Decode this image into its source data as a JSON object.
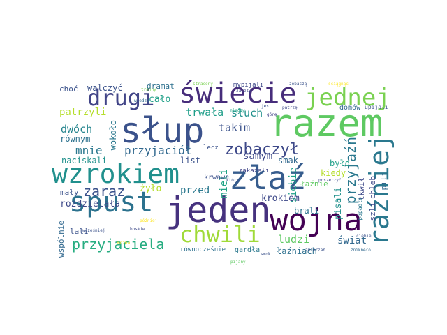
{
  "words": {
    "slup": "słup",
    "razem": "razem",
    "jeden": "jeden",
    "zlaz": "złaź",
    "wzrokiem": "wzrokiem",
    "wojna": "wojna",
    "swiecie": "świecie",
    "spust": "spust",
    "drugi": "drugi",
    "jednej": "jednej",
    "chwili": "chwili",
    "razniej": "raźniej",
    "zobaczyl": "zobaczył",
    "zaraz": "zaraz",
    "przyjaciela": "przyjaciela",
    "przyjaciol": "przyjaciół",
    "przyjazn": "przyjaźń",
    "patrzyli": "patrzyli",
    "trwala": "trwała",
    "sluch": "słuch",
    "mnie": "mnie",
    "dwoch": "dwóch",
    "takim": "takim",
    "samym": "samym",
    "calo": "cało",
    "dramat": "dramat",
    "walczyc": "walczyć",
    "choc": "choć",
    "rownym": "równym",
    "naciskali": "naciskali",
    "wokolo": "wokoło",
    "list": "list",
    "zylo": "żyło",
    "przed": "przed",
    "mieli": "mieli",
    "siebie": "siebie",
    "krokiem": "krokiem",
    "smak": "smak",
    "ludzi": "ludzi",
    "swiat": "świat",
    "brali": "brali",
    "pisali": "pisali",
    "bylo": "było",
    "kiedy": "kiedy",
    "lazniach": "łaźniach",
    "laznie": "łaźnie",
    "chleb": "chleb",
    "szli": "szli",
    "pili": "pili",
    "tkwil": "tkwił",
    "popadlo": "popadło",
    "rozdzielala": "rozdzielała",
    "maly": "mały",
    "lali": "lali",
    "wspolnie": "wspólnie",
    "rownoczesnie": "równocześnie",
    "gardla": "gardła",
    "krwawe": "krwawe",
    "domow": "domów",
    "upijali": "upijali",
    "mypijali": "mypijali",
    "lecz": "lecz",
    "zakazali": "zakazali",
    "zobacza": "zobaczą",
    "stracony": "stracony",
    "ktory": "który",
    "mozna": "można",
    "boskie": "boskie",
    "pijany": "pijany",
    "wczesniej": "wcześniej",
    "pozniej": "później",
    "gore": "górę",
    "jest": "jest",
    "zniknelo": "zniknęło",
    "patrze": "patrzę",
    "miedzy": "między",
    "zaszly": "zaszły",
    "smoki": "smoki",
    "poszerzyc": "poszerzyć",
    "ciebie": "ciebie",
    "wiedza": "wiedzą",
    "tranny": "tranny",
    "sciagnac": "ściągnąć",
    "zmierzal": "zmierzał"
  }
}
